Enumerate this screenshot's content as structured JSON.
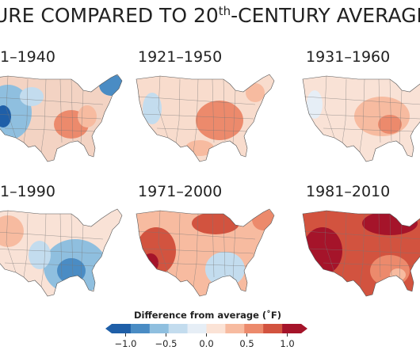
{
  "header": {
    "title": {
      "before": "URE COMPARED TO 20",
      "sup": "th",
      "after": "-CENTURY AVERAGE"
    }
  },
  "panels": [
    {
      "label": "1–1940"
    },
    {
      "label": "1921–1950"
    },
    {
      "label": "1931–1960"
    },
    {
      "label": "1–1990"
    },
    {
      "label": "1971–2000"
    },
    {
      "label": "1981–2010"
    }
  ],
  "legend": {
    "title": "Difference from average (˚F)",
    "lim": [
      -1.25,
      1.25
    ],
    "colors": [
      "#1f5fa8",
      "#4a8cc4",
      "#8fbfdf",
      "#c3dcee",
      "#e6eef6",
      "#fbe3d6",
      "#f7bba0",
      "#ec8a6c",
      "#d2533f",
      "#a5142a"
    ],
    "ticks": [
      {
        "value": -1,
        "label": "−1.0"
      },
      {
        "value": -0.5,
        "label": "−0.5"
      },
      {
        "value": 0,
        "label": "0.0"
      },
      {
        "value": 0.5,
        "label": "0.5"
      },
      {
        "value": 1,
        "label": "1.0"
      }
    ]
  }
}
